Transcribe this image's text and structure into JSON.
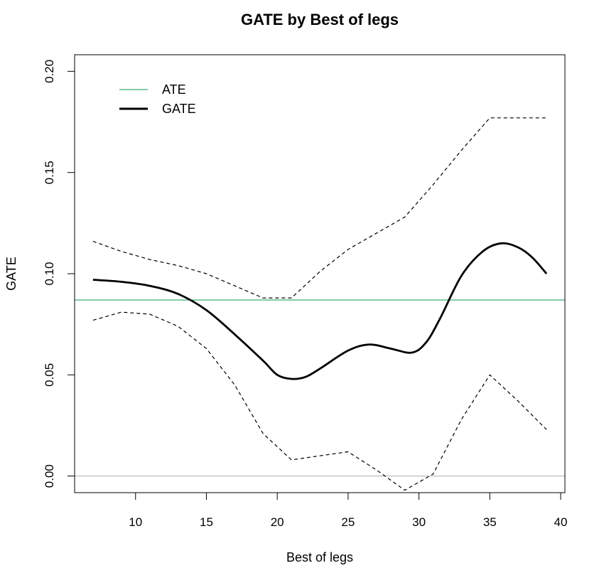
{
  "chart_data": {
    "type": "line",
    "title": "GATE by Best of legs",
    "xlabel": "Best of legs",
    "ylabel": "GATE",
    "xlim": [
      5.7,
      40.3
    ],
    "ylim": [
      -0.0082,
      0.2082
    ],
    "x_ticks": [
      10,
      15,
      20,
      25,
      30,
      35,
      40
    ],
    "y_ticks": [
      0.0,
      0.05,
      0.1,
      0.15,
      0.2
    ],
    "x_tick_labels": [
      "10",
      "15",
      "20",
      "25",
      "30",
      "35",
      "40"
    ],
    "y_tick_labels": [
      "0.00",
      "0.05",
      "0.10",
      "0.15",
      "0.20"
    ],
    "grid": false,
    "legend": {
      "placement": "top-left",
      "entries": [
        "ATE",
        "GATE"
      ]
    },
    "series": [
      {
        "name": "ATE",
        "style": "solid",
        "color": "#5aba8a",
        "x": [
          5.7,
          40.3
        ],
        "y": [
          0.087,
          0.087
        ]
      },
      {
        "name": "GATE",
        "style": "solid-thick",
        "color": "#000000",
        "x": [
          7,
          9,
          11,
          13,
          15,
          17,
          19,
          20,
          21,
          22,
          23,
          25,
          26.5,
          28,
          29.5,
          30.5,
          31.5,
          33,
          34.5,
          35.8,
          37,
          38,
          39
        ],
        "y": [
          0.097,
          0.096,
          0.094,
          0.09,
          0.082,
          0.07,
          0.057,
          0.05,
          0.048,
          0.049,
          0.053,
          0.062,
          0.065,
          0.063,
          0.061,
          0.066,
          0.078,
          0.099,
          0.111,
          0.115,
          0.113,
          0.108,
          0.1
        ]
      },
      {
        "style": "dashed",
        "color": "#000000",
        "x": [
          7,
          9,
          11,
          13,
          15,
          17,
          19,
          21,
          23,
          25,
          27,
          29,
          31,
          33,
          35,
          37,
          39
        ],
        "y": [
          0.116,
          0.111,
          0.107,
          0.104,
          0.1,
          0.094,
          0.088,
          0.088,
          0.101,
          0.112,
          0.12,
          0.128,
          0.144,
          0.161,
          0.177,
          0.177,
          0.177
        ]
      },
      {
        "style": "dashed",
        "color": "#000000",
        "x": [
          7,
          9,
          11,
          13,
          15,
          17,
          19,
          21,
          23,
          25,
          27,
          29,
          31,
          33,
          35,
          37,
          39
        ],
        "y": [
          0.077,
          0.081,
          0.08,
          0.074,
          0.063,
          0.045,
          0.021,
          0.008,
          0.01,
          0.012,
          0.003,
          -0.007,
          0.001,
          0.028,
          0.05,
          0.037,
          0.023
        ]
      }
    ],
    "reference_line": {
      "y": 0.0,
      "color": "#bebebe"
    }
  }
}
